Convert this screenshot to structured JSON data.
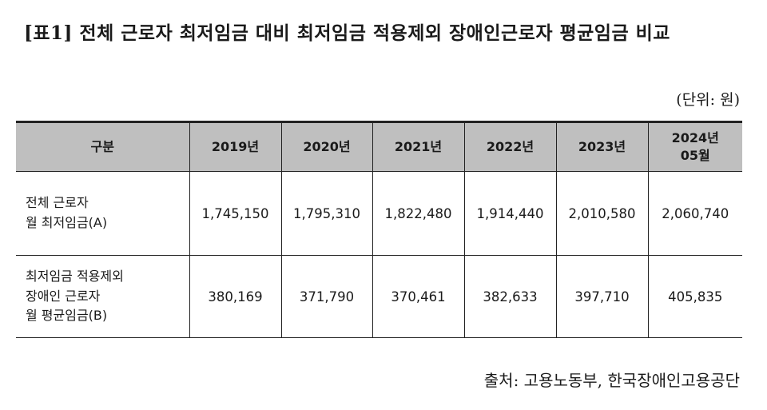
{
  "title": "[표1] 전체 근로자 최저임금 대비 최저임금 적용제외 장애인근로자 평균임금 비교",
  "unit": "(단위: 원)",
  "table": {
    "header": {
      "category": "구분",
      "years": [
        [
          "2019년"
        ],
        [
          "2020년"
        ],
        [
          "2021년"
        ],
        [
          "2022년"
        ],
        [
          "2023년"
        ],
        [
          "2024년",
          "05월"
        ]
      ]
    },
    "rows": [
      {
        "label_lines": [
          "전체 근로자",
          "월 최저임금(A)"
        ],
        "values": [
          "1,745,150",
          "1,795,310",
          "1,822,480",
          "1,914,440",
          "2,010,580",
          "2,060,740"
        ]
      },
      {
        "label_lines": [
          "최저임금 적용제외",
          "장애인 근로자",
          "월 평균임금(B)"
        ],
        "values": [
          "380,169",
          "371,790",
          "370,461",
          "382,633",
          "397,710",
          "405,835"
        ]
      }
    ]
  },
  "source": "출처: 고용노동부, 한국장애인고용공단",
  "colors": {
    "header_background": "#bfbfbf",
    "border": "#222222",
    "text": "#1a1a1a"
  }
}
